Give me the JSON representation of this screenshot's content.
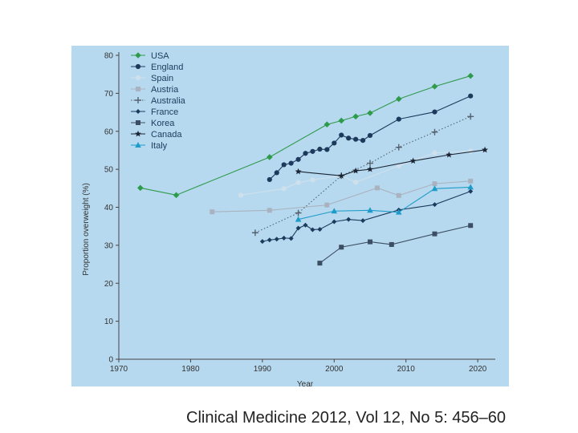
{
  "caption": "Clinical Medicine 2012, Vol 12, No 5: 456–60",
  "chart_data": {
    "type": "line",
    "xlabel": "Year",
    "ylabel": "Proportion overweight (%)",
    "xlim": [
      1970,
      2022
    ],
    "ylim": [
      0,
      80
    ],
    "xticks": [
      1970,
      1980,
      1990,
      2000,
      2010,
      2020
    ],
    "yticks": [
      0,
      10,
      20,
      30,
      40,
      50,
      60,
      70,
      80
    ],
    "legend_position": "top-left",
    "series": [
      {
        "name": "USA",
        "color": "#2e9a4b",
        "marker": "diamond",
        "dash": "solid",
        "x": [
          1973,
          1978,
          1991,
          1999,
          2001,
          2003,
          2005,
          2009,
          2014,
          2019
        ],
        "y": [
          45.1,
          43.2,
          53.2,
          61.8,
          62.8,
          63.9,
          64.8,
          68.5,
          71.8,
          74.6
        ]
      },
      {
        "name": "England",
        "color": "#1d3a5c",
        "marker": "circle",
        "dash": "solid",
        "x": [
          1991,
          1992,
          1993,
          1994,
          1995,
          1996,
          1997,
          1998,
          1999,
          2000,
          2001,
          2002,
          2003,
          2004,
          2005,
          2009,
          2014,
          2019
        ],
        "y": [
          47.3,
          49.1,
          51.2,
          51.6,
          52.6,
          54.2,
          54.7,
          55.3,
          55.2,
          56.9,
          59.0,
          58.2,
          57.9,
          57.6,
          58.9,
          63.2,
          65.1,
          69.3
        ]
      },
      {
        "name": "Spain",
        "color": "#cfe0ec",
        "marker": "circle",
        "dash": "solid",
        "x": [
          1987,
          1993,
          1995,
          1997,
          2001,
          2003,
          2009,
          2014,
          2019
        ],
        "y": [
          43.2,
          44.9,
          46.5,
          47.2,
          48.3,
          46.6,
          50.9,
          54.3,
          54.8
        ]
      },
      {
        "name": "Austria",
        "color": "#a9b3bf",
        "marker": "square",
        "dash": "solid",
        "x": [
          1983,
          1991,
          1999,
          2006,
          2009,
          2014,
          2019
        ],
        "y": [
          38.8,
          39.2,
          40.6,
          45.1,
          43.1,
          46.2,
          46.9
        ]
      },
      {
        "name": "Australia",
        "color": "#53616e",
        "marker": "plus",
        "dash": "dotted",
        "x": [
          1989,
          1995,
          2001,
          2005,
          2009,
          2014,
          2019
        ],
        "y": [
          33.3,
          38.5,
          48.3,
          51.6,
          55.8,
          59.8,
          63.9
        ]
      },
      {
        "name": "France",
        "color": "#1d3a5c",
        "marker": "diamond-small",
        "dash": "solid",
        "x": [
          1990,
          1991,
          1992,
          1993,
          1994,
          1995,
          1996,
          1997,
          1998,
          2000,
          2002,
          2004,
          2009,
          2014,
          2019
        ],
        "y": [
          31.0,
          31.4,
          31.6,
          31.9,
          31.8,
          34.5,
          35.3,
          34.1,
          34.2,
          36.2,
          36.8,
          36.5,
          39.3,
          40.7,
          44.2
        ]
      },
      {
        "name": "Korea",
        "color": "#3c4e63",
        "marker": "square",
        "dash": "solid",
        "x": [
          1998,
          2001,
          2005,
          2008,
          2014,
          2019
        ],
        "y": [
          25.3,
          29.5,
          30.9,
          30.2,
          33.0,
          35.2
        ]
      },
      {
        "name": "Canada",
        "color": "#1a2433",
        "marker": "star",
        "dash": "solid",
        "x": [
          1995,
          2001,
          2003,
          2005,
          2011,
          2016,
          2021
        ],
        "y": [
          49.4,
          48.3,
          49.6,
          50.0,
          52.2,
          53.8,
          55.1
        ]
      },
      {
        "name": "Italy",
        "color": "#1e9cc9",
        "marker": "triangle",
        "dash": "solid",
        "x": [
          1995,
          2000,
          2005,
          2009,
          2014,
          2019
        ],
        "y": [
          36.8,
          39.0,
          39.2,
          38.7,
          44.9,
          45.3
        ]
      }
    ]
  }
}
